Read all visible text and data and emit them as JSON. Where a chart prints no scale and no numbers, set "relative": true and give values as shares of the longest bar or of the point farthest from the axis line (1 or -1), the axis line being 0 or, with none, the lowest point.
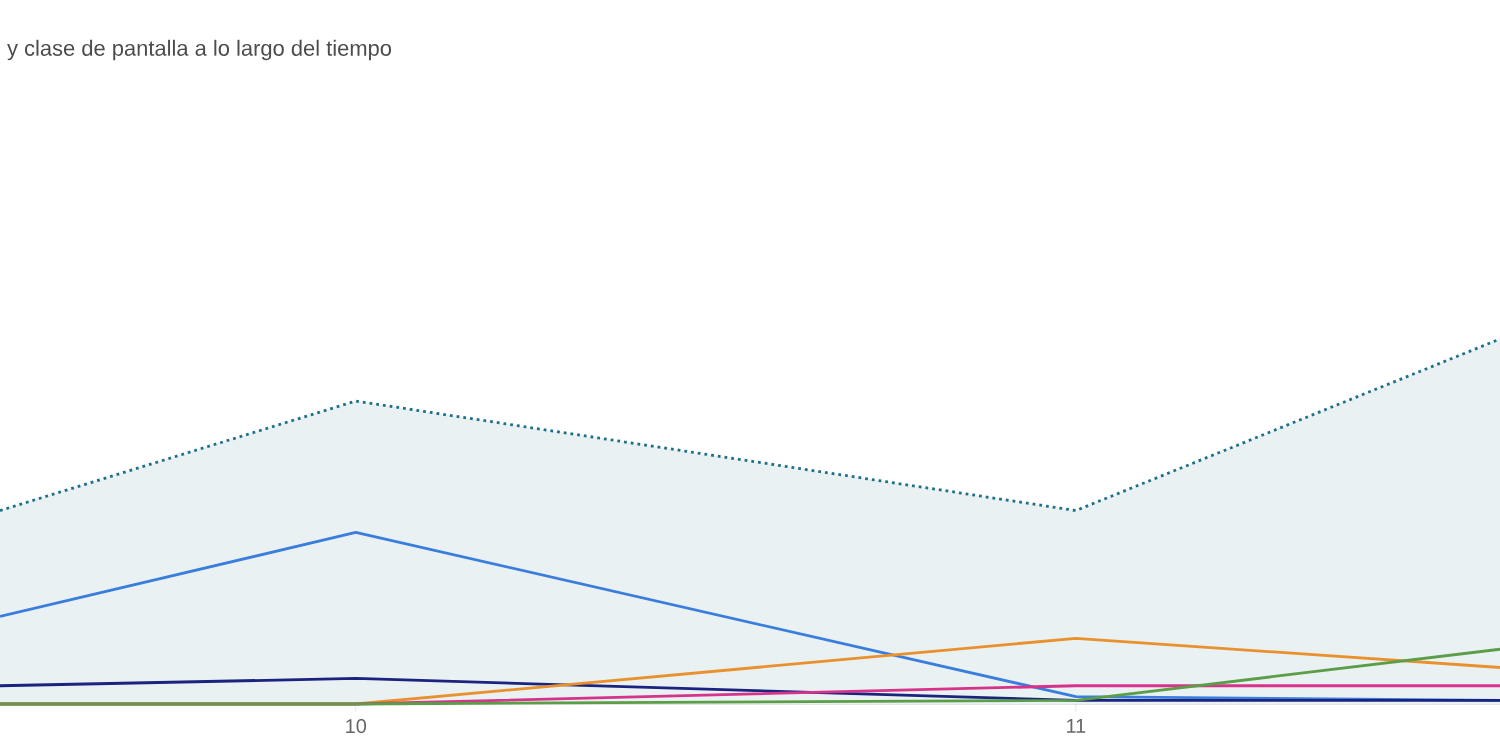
{
  "chart_data": {
    "type": "line",
    "title": "y clase de pantalla a lo largo del tiempo",
    "relative": true,
    "x": [
      9.506,
      10,
      11,
      11.589
    ],
    "xlim": [
      9.506,
      11.589
    ],
    "xticks": [
      10,
      11
    ],
    "marker": "none",
    "series": [
      {
        "type": "area",
        "color": "#1f6f8b",
        "line_style": "dotted",
        "values": [
          0.53,
          0.83,
          0.53,
          1
        ]
      },
      {
        "color": "#3b7ddd",
        "values": [
          0.24,
          0.47,
          0.02,
          0.01
        ]
      },
      {
        "color": "#1a237e",
        "values": [
          0.05,
          0.07,
          0.01,
          0.01
        ]
      },
      {
        "color": "#e8912d",
        "values": [
          0,
          0,
          0.18,
          0.1
        ]
      },
      {
        "color": "#d6338a",
        "values": [
          0,
          0,
          0.05,
          0.05
        ]
      },
      {
        "color": "#5b9e47",
        "values": [
          0,
          0,
          0.01,
          0.15
        ]
      }
    ]
  }
}
